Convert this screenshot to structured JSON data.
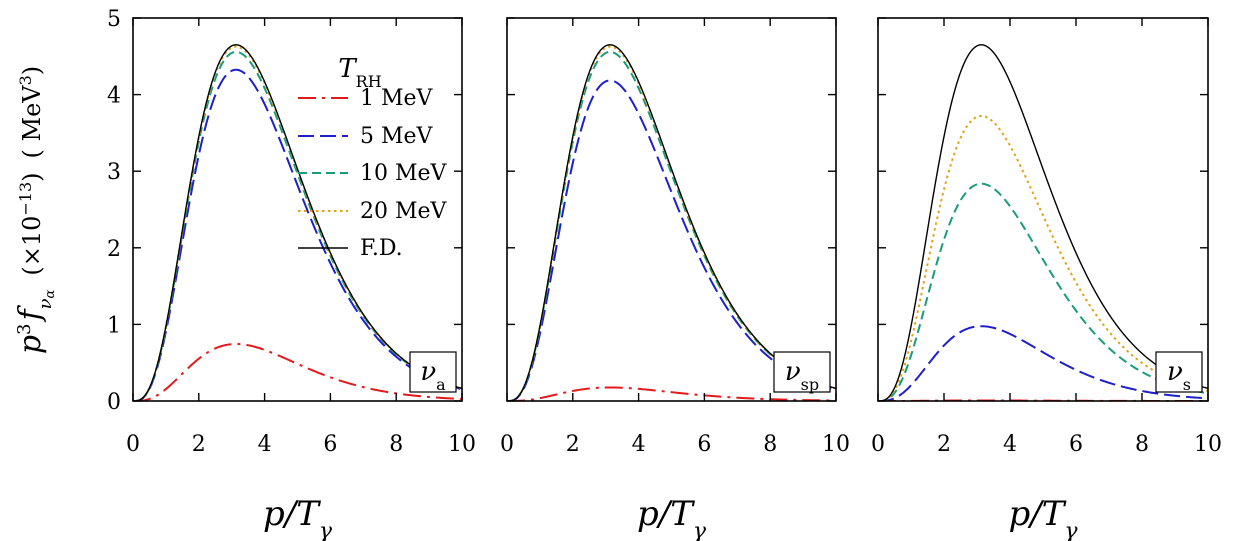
{
  "chart_data": {
    "type": "line",
    "ylabel": {
      "main": "p",
      "sup": "3",
      "f": "f",
      "sub": "ν",
      "subsub": "α",
      "factor": "(×10",
      "factor_exp": "−13",
      "factor_close": ")",
      "units": "( MeV",
      "units_exp": "3",
      "units_close": ")"
    },
    "xlabel": "p/T",
    "xlabel_sub": "γ",
    "xlim": [
      0,
      10
    ],
    "ylim": [
      0,
      5
    ],
    "xticks": [
      "0",
      "2",
      "4",
      "6",
      "8",
      "10"
    ],
    "yticks": [
      "0",
      "1",
      "2",
      "3",
      "4",
      "5"
    ],
    "legend": {
      "title": "T",
      "title_sub": "RH",
      "placement": "top-right of first panel",
      "entries": [
        {
          "label": "1 MeV",
          "color": "#e31a1c",
          "dash": "long-dash-dot"
        },
        {
          "label": "5 MeV",
          "color": "#1f1fcc",
          "dash": "long-dash"
        },
        {
          "label": "10 MeV",
          "color": "#1a9c7a",
          "dash": "dash"
        },
        {
          "label": "20 MeV",
          "color": "#e0a21a",
          "dash": "dot"
        },
        {
          "label": "F.D.",
          "color": "#000000",
          "dash": "solid"
        }
      ]
    },
    "fd_peak": 4.65,
    "peak_x": 2.2,
    "panels": [
      {
        "label": "ν",
        "label_sub": "a",
        "scales": {
          "1 MeV": 0.16,
          "5 MeV": 0.93,
          "10 MeV": 0.98,
          "20 MeV": 0.995,
          "F.D.": 1.0
        }
      },
      {
        "label": "ν",
        "label_sub": "sp",
        "scales": {
          "1 MeV": 0.038,
          "5 MeV": 0.9,
          "10 MeV": 0.98,
          "20 MeV": 0.995,
          "F.D.": 1.0
        }
      },
      {
        "label": "ν",
        "label_sub": "s",
        "scales": {
          "1 MeV": 0.0015,
          "5 MeV": 0.21,
          "10 MeV": 0.61,
          "20 MeV": 0.8,
          "F.D.": 1.0
        }
      }
    ]
  }
}
